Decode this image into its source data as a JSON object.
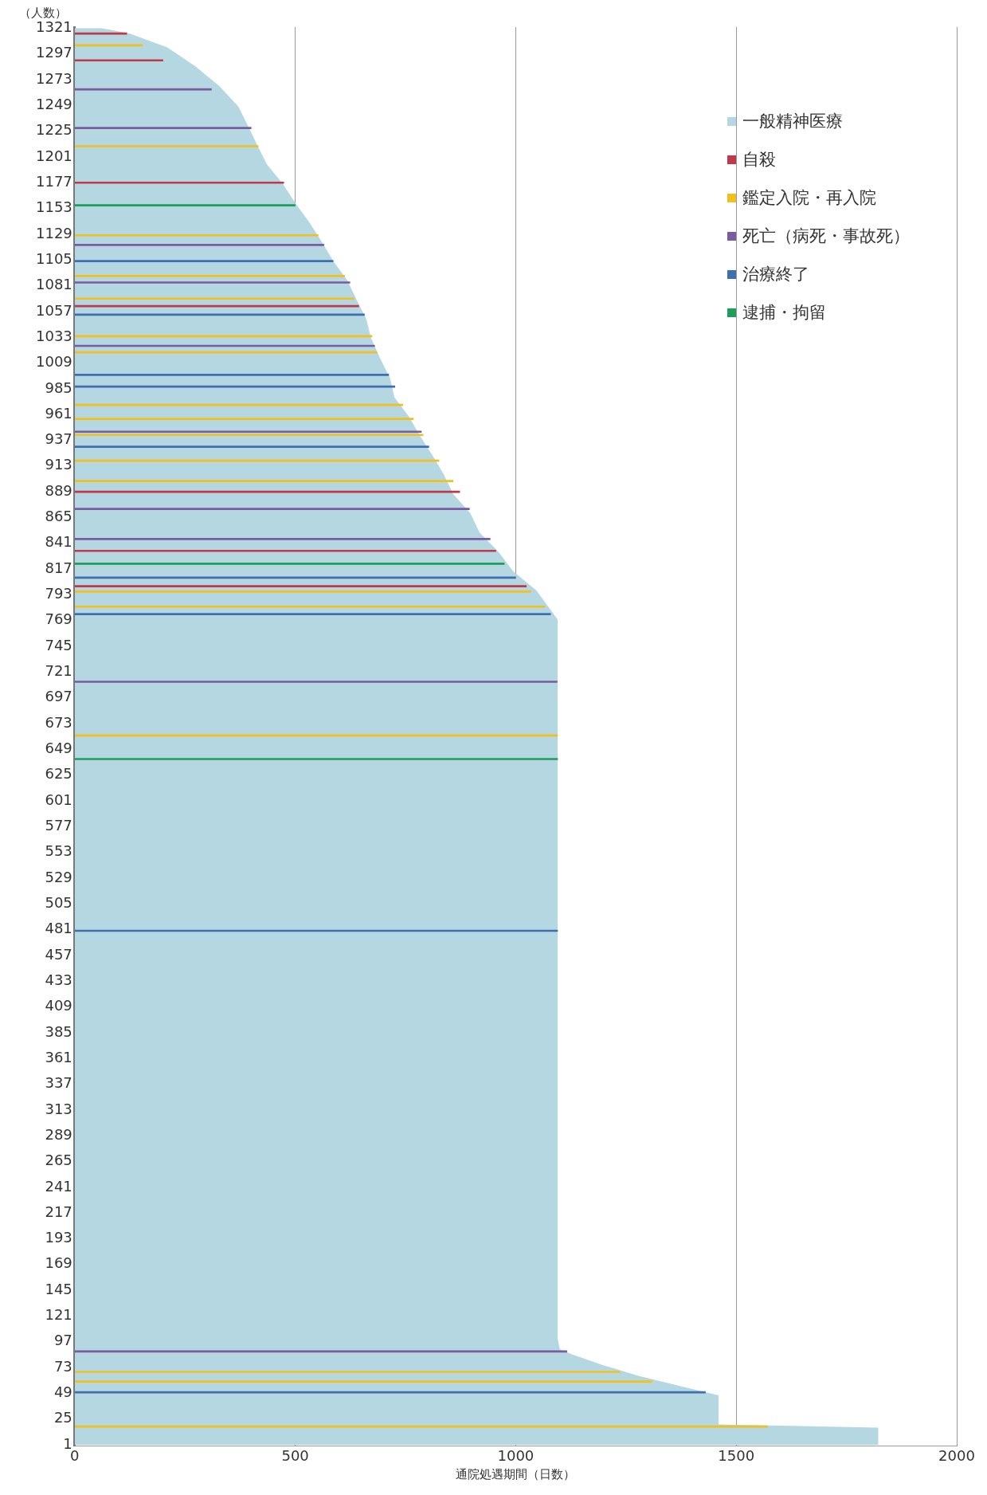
{
  "chart_data": {
    "type": "bar",
    "orientation": "horizontal",
    "xlabel": "通院処遇期間（日数）",
    "ylabel": "（人数）",
    "xlim": [
      0,
      2000
    ],
    "xticks": [
      0,
      500,
      1000,
      1500,
      2000
    ],
    "ylim": [
      0,
      1322
    ],
    "yticks": [
      1,
      25,
      49,
      73,
      97,
      121,
      145,
      169,
      193,
      217,
      241,
      265,
      289,
      313,
      337,
      361,
      385,
      409,
      433,
      457,
      481,
      505,
      529,
      553,
      577,
      601,
      625,
      649,
      673,
      697,
      721,
      745,
      769,
      793,
      817,
      841,
      865,
      889,
      913,
      937,
      961,
      985,
      1009,
      1033,
      1057,
      1081,
      1105,
      1129,
      1153,
      1177,
      1201,
      1225,
      1249,
      1273,
      1297,
      1321
    ],
    "grid": "x",
    "legend": "top right",
    "series": [
      {
        "name": "一般精神医療",
        "type": "area",
        "color": "#b4d7e2",
        "x": [
          1,
          17,
          20,
          47,
          55,
          65,
          75,
          85,
          90,
          100,
          770,
          779,
          797,
          815,
          833,
          851,
          869,
          887,
          905,
          923,
          941,
          959,
          977,
          995,
          1013,
          1032,
          1050,
          1068,
          1086,
          1104,
          1122,
          1140,
          1158,
          1176,
          1194,
          1212,
          1230,
          1248,
          1267,
          1285,
          1303,
          1316,
          1321
        ],
        "values": [
          1822,
          1822,
          1460,
          1460,
          1380,
          1280,
          1200,
          1130,
          1100,
          1095,
          1095,
          1079,
          1047,
          994,
          961,
          918,
          897,
          858,
          837,
          811,
          783,
          758,
          725,
          715,
          693,
          672,
          661,
          639,
          618,
          586,
          560,
          532,
          500,
          472,
          436,
          414,
          393,
          371,
          328,
          275,
          210,
          124,
          60
        ]
      },
      {
        "name": "自殺",
        "color": "#c0394b",
        "x": [
          1316,
          1291,
          1177,
          1062,
          889,
          834,
          801
        ],
        "values": [
          118,
          200,
          474,
          644,
          873,
          955,
          1024
        ]
      },
      {
        "name": "鑑定入院・再入院",
        "color": "#f2c01e",
        "x": [
          1305,
          1211,
          1128,
          1090,
          1069,
          1034,
          1019,
          970,
          957,
          942,
          918,
          899,
          796,
          782,
          662,
          69,
          60,
          18
        ],
        "values": [
          154,
          416,
          552,
          612,
          633,
          674,
          685,
          744,
          768,
          790,
          826,
          858,
          1034,
          1066,
          1095,
          1236,
          1309,
          1571
        ]
      },
      {
        "name": "死亡（病死・事故死）",
        "color": "#7a5aa0",
        "x": [
          1264,
          1228,
          1119,
          1084,
          1025,
          945,
          873,
          845,
          712,
          88
        ],
        "values": [
          310,
          400,
          565,
          624,
          680,
          786,
          895,
          942,
          1094,
          1116
        ]
      },
      {
        "name": "治療終了",
        "color": "#3f6fae",
        "x": [
          1104,
          1054,
          998,
          987,
          931,
          809,
          775,
          480,
          50
        ],
        "values": [
          586,
          657,
          712,
          726,
          803,
          1000,
          1079,
          1095,
          1430
        ]
      },
      {
        "name": "逮捕・拘留",
        "color": "#1e9e5a",
        "x": [
          1156,
          822,
          640
        ],
        "values": [
          500,
          974,
          1095
        ]
      }
    ]
  }
}
